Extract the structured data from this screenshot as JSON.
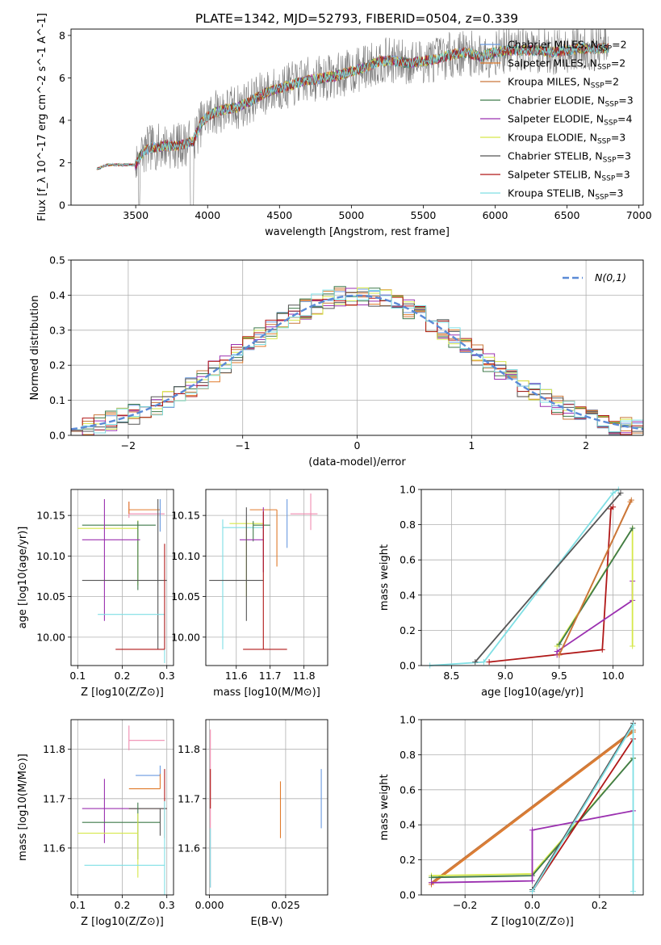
{
  "figure": {
    "title": "PLATE=1342, MJD=52793, FIBERID=0504, z=0.339"
  },
  "colors": {
    "Chabrier MILES": "#6a9ae0",
    "Salpeter MILES": "#e07a2a",
    "Kroupa MILES": "#c9773a",
    "Chabrier ELODIE": "#3f7a4a",
    "Salpeter ELODIE": "#9b30b0",
    "Kroupa ELODIE": "#d6e84a",
    "Chabrier STELIB": "#555555",
    "Salpeter STELIB": "#b01818",
    "Kroupa STELIB": "#7fdfe4",
    "pink": "#f08cb0",
    "data_grey": "#7a7a7a",
    "normal": "#5b8ad6"
  },
  "chart_data": [
    {
      "id": "spectrum",
      "type": "line",
      "xlabel": "wavelength [Angstrom, rest frame]",
      "ylabel": "Flux [f_λ 10^-17 erg cm^-2 s^-1 A^-1]",
      "xlim": [
        3050,
        7030
      ],
      "ylim": [
        0,
        8.3
      ],
      "xticks": [
        3500,
        4000,
        4500,
        5000,
        5500,
        6000,
        6500,
        7000
      ],
      "yticks": [
        0,
        2,
        4,
        6,
        8
      ],
      "grid": false,
      "legend_position": "top-right",
      "legend": [
        {
          "label": "Chabrier MILES, N",
          "sub": "SSP",
          "suffix": "=2",
          "series": "Chabrier MILES"
        },
        {
          "label": "Salpeter MILES, N",
          "sub": "SSP",
          "suffix": "=2",
          "series": "Salpeter MILES"
        },
        {
          "label": "Kroupa MILES, N",
          "sub": "SSP",
          "suffix": "=2",
          "series": "Kroupa MILES"
        },
        {
          "label": "Chabrier ELODIE, N",
          "sub": "SSP",
          "suffix": "=3",
          "series": "Chabrier ELODIE"
        },
        {
          "label": "Salpeter ELODIE, N",
          "sub": "SSP",
          "suffix": "=4",
          "series": "Salpeter ELODIE"
        },
        {
          "label": "Kroupa ELODIE, N",
          "sub": "SSP",
          "suffix": "=3",
          "series": "Kroupa ELODIE"
        },
        {
          "label": "Chabrier STELIB, N",
          "sub": "SSP",
          "suffix": "=3",
          "series": "Chabrier STELIB"
        },
        {
          "label": "Salpeter STELIB, N",
          "sub": "SSP",
          "suffix": "=3",
          "series": "Salpeter STELIB"
        },
        {
          "label": "Kroupa STELIB, N",
          "sub": "SSP",
          "suffix": "=3",
          "series": "Kroupa STELIB"
        }
      ],
      "continuum": {
        "x": [
          3200,
          3230,
          3300,
          3400,
          3500,
          3540,
          3600,
          3700,
          3800,
          3900,
          3950,
          4000,
          4100,
          4200,
          4300,
          4400,
          4500,
          4600,
          4700,
          4800,
          4900,
          5000,
          5100,
          5200,
          5300,
          5400,
          5500,
          5600,
          5700,
          5800,
          5900,
          6000,
          6100,
          6200,
          6300,
          6400,
          6500,
          6600,
          6700,
          6790
        ],
        "y": [
          0.0,
          1.7,
          1.9,
          1.9,
          1.9,
          2.4,
          2.7,
          2.8,
          2.8,
          3.0,
          3.8,
          4.2,
          4.5,
          4.6,
          4.9,
          5.3,
          5.5,
          5.7,
          5.9,
          6.0,
          6.1,
          6.3,
          6.5,
          6.8,
          6.8,
          6.7,
          6.8,
          6.9,
          7.1,
          7.2,
          7.0,
          7.2,
          7.3,
          7.3,
          7.3,
          7.2,
          7.3,
          7.4,
          7.4,
          7.4
        ]
      },
      "observed_noise_band_start": 3500
    },
    {
      "id": "residuals",
      "type": "step",
      "xlabel": "(data-model)/error",
      "ylabel": "Normed distribution",
      "xlim": [
        -2.5,
        2.5
      ],
      "ylim": [
        0,
        0.5
      ],
      "xticks": [
        -2,
        -1,
        0,
        1,
        2
      ],
      "yticks": [
        0.0,
        0.1,
        0.2,
        0.3,
        0.4,
        0.5
      ],
      "grid": true,
      "legend_position": "top-right",
      "legend": [
        {
          "label": "N(0,1)",
          "series": "normal"
        }
      ],
      "bins": {
        "start": -2.5,
        "width": 0.1,
        "count": 50
      },
      "reference": {
        "name": "N(0,1)",
        "mean": 0,
        "sigma": 1
      }
    },
    {
      "id": "age_vs_Z",
      "type": "errorbar",
      "xlabel": "Z [log10(Z/Z⊙)]",
      "ylabel": "age [log10(age/yr)]",
      "xlim": [
        0.085,
        0.315
      ],
      "ylim": [
        9.965,
        10.182
      ],
      "xticks": [
        0.1,
        0.2,
        0.3
      ],
      "yticks": [
        10.0,
        10.05,
        10.1,
        10.15
      ],
      "grid": true,
      "points": [
        {
          "series": "pink",
          "x": 0.215,
          "xerr": [
            0.0,
            0.08
          ],
          "y": 10.152,
          "yerr": [
            0.005,
            0.015
          ]
        },
        {
          "series": "Salpeter MILES",
          "x": 0.215,
          "xerr": [
            0.0,
            0.07
          ],
          "y": 10.157,
          "yerr": [
            0.005,
            0.01
          ]
        },
        {
          "series": "Kroupa ELODIE",
          "x": 0.235,
          "xerr": [
            0.135,
            0.0
          ],
          "y": 10.134,
          "yerr": [
            0.07,
            0.01
          ]
        },
        {
          "series": "Chabrier ELODIE",
          "x": 0.235,
          "xerr": [
            0.125,
            0.04
          ],
          "y": 10.138,
          "yerr": [
            0.08,
            0.005
          ]
        },
        {
          "series": "Salpeter ELODIE",
          "x": 0.16,
          "xerr": [
            0.05,
            0.08
          ],
          "y": 10.12,
          "yerr": [
            0.1,
            0.05
          ]
        },
        {
          "series": "Chabrier STELIB",
          "x": 0.28,
          "xerr": [
            0.17,
            0.02
          ],
          "y": 10.07,
          "yerr": [
            0.085,
            0.1
          ]
        },
        {
          "series": "Kroupa STELIB",
          "x": 0.295,
          "xerr": [
            0.15,
            0.0
          ],
          "y": 10.028,
          "yerr": [
            0.06,
            0.0
          ]
        },
        {
          "series": "Salpeter STELIB",
          "x": 0.295,
          "xerr": [
            0.11,
            0.0
          ],
          "y": 9.985,
          "yerr": [
            0.0,
            0.13
          ]
        },
        {
          "series": "Chabrier MILES",
          "x": 0.285,
          "xerr": [
            0.0,
            0.0
          ],
          "y": 10.16,
          "yerr": [
            0.03,
            0.01
          ]
        }
      ]
    },
    {
      "id": "age_vs_mass",
      "type": "errorbar",
      "xlabel": "mass [log10(M/M⊙)]",
      "ylabel": "",
      "xlim": [
        11.51,
        11.87
      ],
      "ylim": [
        9.965,
        10.182
      ],
      "xticks": [
        11.6,
        11.7,
        11.8
      ],
      "yticks": [
        10.0,
        10.05,
        10.1,
        10.15
      ],
      "grid": true,
      "points": [
        {
          "series": "pink",
          "x": 11.82,
          "xerr": [
            0.06,
            0.02
          ],
          "y": 10.152,
          "yerr": [
            0.02,
            0.025
          ]
        },
        {
          "series": "Chabrier MILES",
          "x": 11.75,
          "xerr": [
            0.0,
            0.0
          ],
          "y": 10.14,
          "yerr": [
            0.03,
            0.03
          ]
        },
        {
          "series": "Salpeter MILES",
          "x": 11.72,
          "xerr": [
            0.08,
            0.0
          ],
          "y": 10.157,
          "yerr": [
            0.07,
            0.0
          ]
        },
        {
          "series": "Kroupa STELIB",
          "x": 11.56,
          "xerr": [
            0.0,
            0.12
          ],
          "y": 10.135,
          "yerr": [
            0.15,
            0.01
          ]
        },
        {
          "series": "Kroupa ELODIE",
          "x": 11.63,
          "xerr": [
            0.05,
            0.05
          ],
          "y": 10.14,
          "yerr": [
            0.09,
            0.005
          ]
        },
        {
          "series": "Chabrier ELODIE",
          "x": 11.65,
          "xerr": [
            0.0,
            0.05
          ],
          "y": 10.138,
          "yerr": [
            0.02,
            0.005
          ]
        },
        {
          "series": "Salpeter ELODIE",
          "x": 11.68,
          "xerr": [
            0.07,
            0.0
          ],
          "y": 10.12,
          "yerr": [
            0.04,
            0.04
          ]
        },
        {
          "series": "Chabrier STELIB",
          "x": 11.63,
          "xerr": [
            0.11,
            0.05
          ],
          "y": 10.07,
          "yerr": [
            0.05,
            0.09
          ]
        },
        {
          "series": "Salpeter STELIB",
          "x": 11.68,
          "xerr": [
            0.06,
            0.07
          ],
          "y": 9.985,
          "yerr": [
            0.0,
            0.17
          ]
        }
      ]
    },
    {
      "id": "weight_vs_age",
      "type": "line",
      "xlabel": "age [log10(age/yr)]",
      "ylabel": "mass weight",
      "xlim": [
        8.22,
        10.28
      ],
      "ylim": [
        0.0,
        1.0
      ],
      "xticks": [
        8.5,
        9.0,
        9.5,
        10.0
      ],
      "yticks": [
        0.0,
        0.2,
        0.4,
        0.6,
        0.8,
        1.0
      ],
      "grid": true,
      "series": [
        {
          "name": "Kroupa STELIB",
          "x": [
            8.3,
            8.8,
            10.0,
            10.05
          ],
          "y": [
            0.0,
            0.02,
            0.98,
            1.0
          ]
        },
        {
          "name": "Chabrier STELIB",
          "x": [
            8.72,
            10.07
          ],
          "y": [
            0.02,
            0.98
          ]
        },
        {
          "name": "Salpeter STELIB",
          "x": [
            8.85,
            9.9,
            9.98,
            10.0
          ],
          "y": [
            0.02,
            0.09,
            0.89,
            0.9
          ]
        },
        {
          "name": "Salpeter ELODIE",
          "x": [
            9.48,
            9.48,
            10.18,
            10.18
          ],
          "y": [
            0.06,
            0.08,
            0.37,
            0.48
          ]
        },
        {
          "name": "Kroupa ELODIE",
          "x": [
            9.48,
            10.18,
            10.18
          ],
          "y": [
            0.11,
            0.78,
            0.11
          ]
        },
        {
          "name": "Chabrier ELODIE",
          "x": [
            9.5,
            10.18
          ],
          "y": [
            0.12,
            0.78
          ]
        },
        {
          "name": "Salpeter MILES",
          "x": [
            9.5,
            10.16
          ],
          "y": [
            0.06,
            0.93
          ]
        },
        {
          "name": "Kroupa MILES",
          "x": [
            9.5,
            10.17
          ],
          "y": [
            0.06,
            0.94
          ]
        }
      ]
    },
    {
      "id": "mass_vs_Z",
      "type": "errorbar",
      "xlabel": "Z [log10(Z/Z⊙)]",
      "ylabel": "mass [log10(M/M⊙)]",
      "xlim": [
        0.085,
        0.315
      ],
      "ylim": [
        11.505,
        11.86
      ],
      "xticks": [
        0.1,
        0.2,
        0.3
      ],
      "yticks": [
        11.6,
        11.7,
        11.8
      ],
      "grid": true,
      "points": [
        {
          "series": "pink",
          "x": 0.215,
          "xerr": [
            0.0,
            0.08
          ],
          "y": 11.818,
          "yerr": [
            0.02,
            0.03
          ]
        },
        {
          "series": "Chabrier MILES",
          "x": 0.285,
          "xerr": [
            0.055,
            0.0
          ],
          "y": 11.747,
          "yerr": [
            0.0,
            0.02
          ]
        },
        {
          "series": "Salpeter MILES",
          "x": 0.285,
          "xerr": [
            0.07,
            0.0
          ],
          "y": 11.72,
          "yerr": [
            0.0,
            0.03
          ]
        },
        {
          "series": "Salpeter ELODIE",
          "x": 0.16,
          "xerr": [
            0.05,
            0.08
          ],
          "y": 11.68,
          "yerr": [
            0.07,
            0.06
          ]
        },
        {
          "series": "Salpeter STELIB",
          "x": 0.295,
          "xerr": [
            0.08,
            0.005
          ],
          "y": 11.68,
          "yerr": [
            0.06,
            0.08
          ]
        },
        {
          "series": "Chabrier STELIB",
          "x": 0.285,
          "xerr": [
            0.07,
            0.015
          ],
          "y": 11.68,
          "yerr": [
            0.055,
            0.0
          ]
        },
        {
          "series": "Chabrier ELODIE",
          "x": 0.235,
          "xerr": [
            0.125,
            0.05
          ],
          "y": 11.652,
          "yerr": [
            0.075,
            0.04
          ]
        },
        {
          "series": "Kroupa ELODIE",
          "x": 0.235,
          "xerr": [
            0.135,
            0.0
          ],
          "y": 11.63,
          "yerr": [
            0.09,
            0.04
          ]
        },
        {
          "series": "Kroupa STELIB",
          "x": 0.295,
          "xerr": [
            0.18,
            0.0
          ],
          "y": 11.565,
          "yerr": [
            0.06,
            0.13
          ]
        }
      ]
    },
    {
      "id": "mass_vs_ebv",
      "type": "errorbar",
      "xlabel": "E(B-V)",
      "ylabel": "",
      "xlim": [
        -0.0012,
        0.0388
      ],
      "ylim": [
        11.505,
        11.86
      ],
      "xticks": [
        0.0,
        0.025
      ],
      "yticks": [
        11.6,
        11.7,
        11.8
      ],
      "grid": true,
      "points": [
        {
          "series": "pink",
          "x": 0.0003,
          "xerr": [
            0.0,
            0.0
          ],
          "y": 11.7,
          "yerr": [
            0.18,
            0.14
          ]
        },
        {
          "series": "Salpeter STELIB",
          "x": 0.0003,
          "xerr": [
            0.0,
            0.0
          ],
          "y": 11.72,
          "yerr": [
            0.04,
            0.04
          ]
        },
        {
          "series": "Kroupa STELIB",
          "x": 0.0003,
          "xerr": [
            0.0,
            0.0
          ],
          "y": 11.6,
          "yerr": [
            0.08,
            0.04
          ]
        },
        {
          "series": "Salpeter MILES",
          "x": 0.0233,
          "xerr": [
            0.0,
            0.0
          ],
          "y": 11.68,
          "yerr": [
            0.06,
            0.055
          ]
        },
        {
          "series": "Chabrier MILES",
          "x": 0.0367,
          "xerr": [
            0.0,
            0.0
          ],
          "y": 11.7,
          "yerr": [
            0.06,
            0.06
          ]
        }
      ]
    },
    {
      "id": "weight_vs_Z",
      "type": "line",
      "xlabel": "Z [log10(Z/Z⊙)]",
      "ylabel": "mass weight",
      "xlim": [
        -0.33,
        0.33
      ],
      "ylim": [
        0.0,
        1.0
      ],
      "xticks": [
        -0.2,
        0.0,
        0.2
      ],
      "yticks": [
        0.0,
        0.2,
        0.4,
        0.6,
        0.8,
        1.0
      ],
      "grid": true,
      "series": [
        {
          "name": "Salpeter MILES",
          "x": [
            -0.3,
            0.3
          ],
          "y": [
            0.06,
            0.93
          ]
        },
        {
          "name": "Kroupa MILES",
          "x": [
            -0.3,
            0.3
          ],
          "y": [
            0.07,
            0.94
          ]
        },
        {
          "name": "Kroupa ELODIE",
          "x": [
            -0.3,
            0.0,
            0.3
          ],
          "y": [
            0.11,
            0.12,
            0.78
          ]
        },
        {
          "name": "Chabrier ELODIE",
          "x": [
            -0.3,
            0.0,
            0.3
          ],
          "y": [
            0.1,
            0.11,
            0.78
          ]
        },
        {
          "name": "Salpeter ELODIE",
          "x": [
            -0.3,
            0.0,
            0.0,
            0.3
          ],
          "y": [
            0.07,
            0.08,
            0.37,
            0.48
          ]
        },
        {
          "name": "Salpeter STELIB",
          "x": [
            0.0,
            0.3
          ],
          "y": [
            0.02,
            0.89
          ]
        },
        {
          "name": "Chabrier STELIB",
          "x": [
            0.0,
            0.3
          ],
          "y": [
            0.03,
            0.98
          ]
        },
        {
          "name": "Kroupa STELIB",
          "x": [
            0.0,
            0.3,
            0.3
          ],
          "y": [
            0.02,
            0.97,
            0.02
          ]
        }
      ]
    }
  ]
}
